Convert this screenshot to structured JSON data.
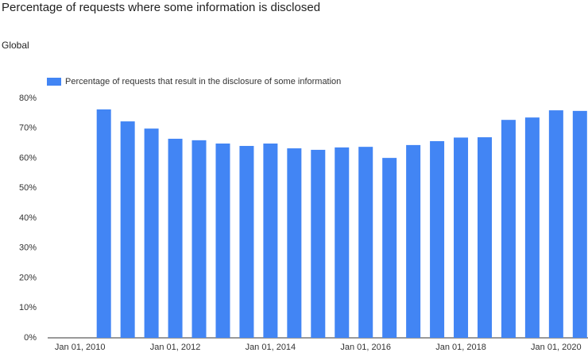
{
  "chart_data": {
    "type": "bar",
    "title": "Percentage of requests where some information is disclosed",
    "subtitle": "Global",
    "x": [
      2010.5,
      2011,
      2011.5,
      2012,
      2012.5,
      2013,
      2013.5,
      2014,
      2014.5,
      2015,
      2015.5,
      2016,
      2016.5,
      2017,
      2017.5,
      2018,
      2018.5,
      2019,
      2019.5,
      2020,
      2020.5
    ],
    "series": [
      {
        "name": "Percentage of requests that result in the disclosure of some information",
        "color": "#4285f4",
        "values": [
          76.3,
          72.3,
          69.9,
          66.5,
          66.0,
          64.9,
          64.1,
          64.9,
          63.3,
          62.8,
          63.6,
          63.8,
          60.1,
          64.4,
          65.7,
          66.9,
          67.0,
          72.8,
          73.6,
          76.0,
          75.8
        ]
      }
    ],
    "xlim": [
      2009.32,
      2020.67
    ],
    "xticks": [
      {
        "value": 2010,
        "label": "Jan 01, 2010"
      },
      {
        "value": 2012,
        "label": "Jan 01, 2012"
      },
      {
        "value": 2014,
        "label": "Jan 01, 2014"
      },
      {
        "value": 2016,
        "label": "Jan 01, 2016"
      },
      {
        "value": 2018,
        "label": "Jan 01, 2018"
      },
      {
        "value": 2020,
        "label": "Jan 01, 2020"
      }
    ],
    "ylim": [
      0,
      80
    ],
    "yticks": [
      {
        "value": 0,
        "label": "0%"
      },
      {
        "value": 10,
        "label": "10%"
      },
      {
        "value": 20,
        "label": "20%"
      },
      {
        "value": 30,
        "label": "30%"
      },
      {
        "value": 40,
        "label": "40%"
      },
      {
        "value": 50,
        "label": "50%"
      },
      {
        "value": 60,
        "label": "60%"
      },
      {
        "value": 70,
        "label": "70%"
      },
      {
        "value": 80,
        "label": "80%"
      }
    ],
    "grid": false,
    "legend": "top-left"
  }
}
